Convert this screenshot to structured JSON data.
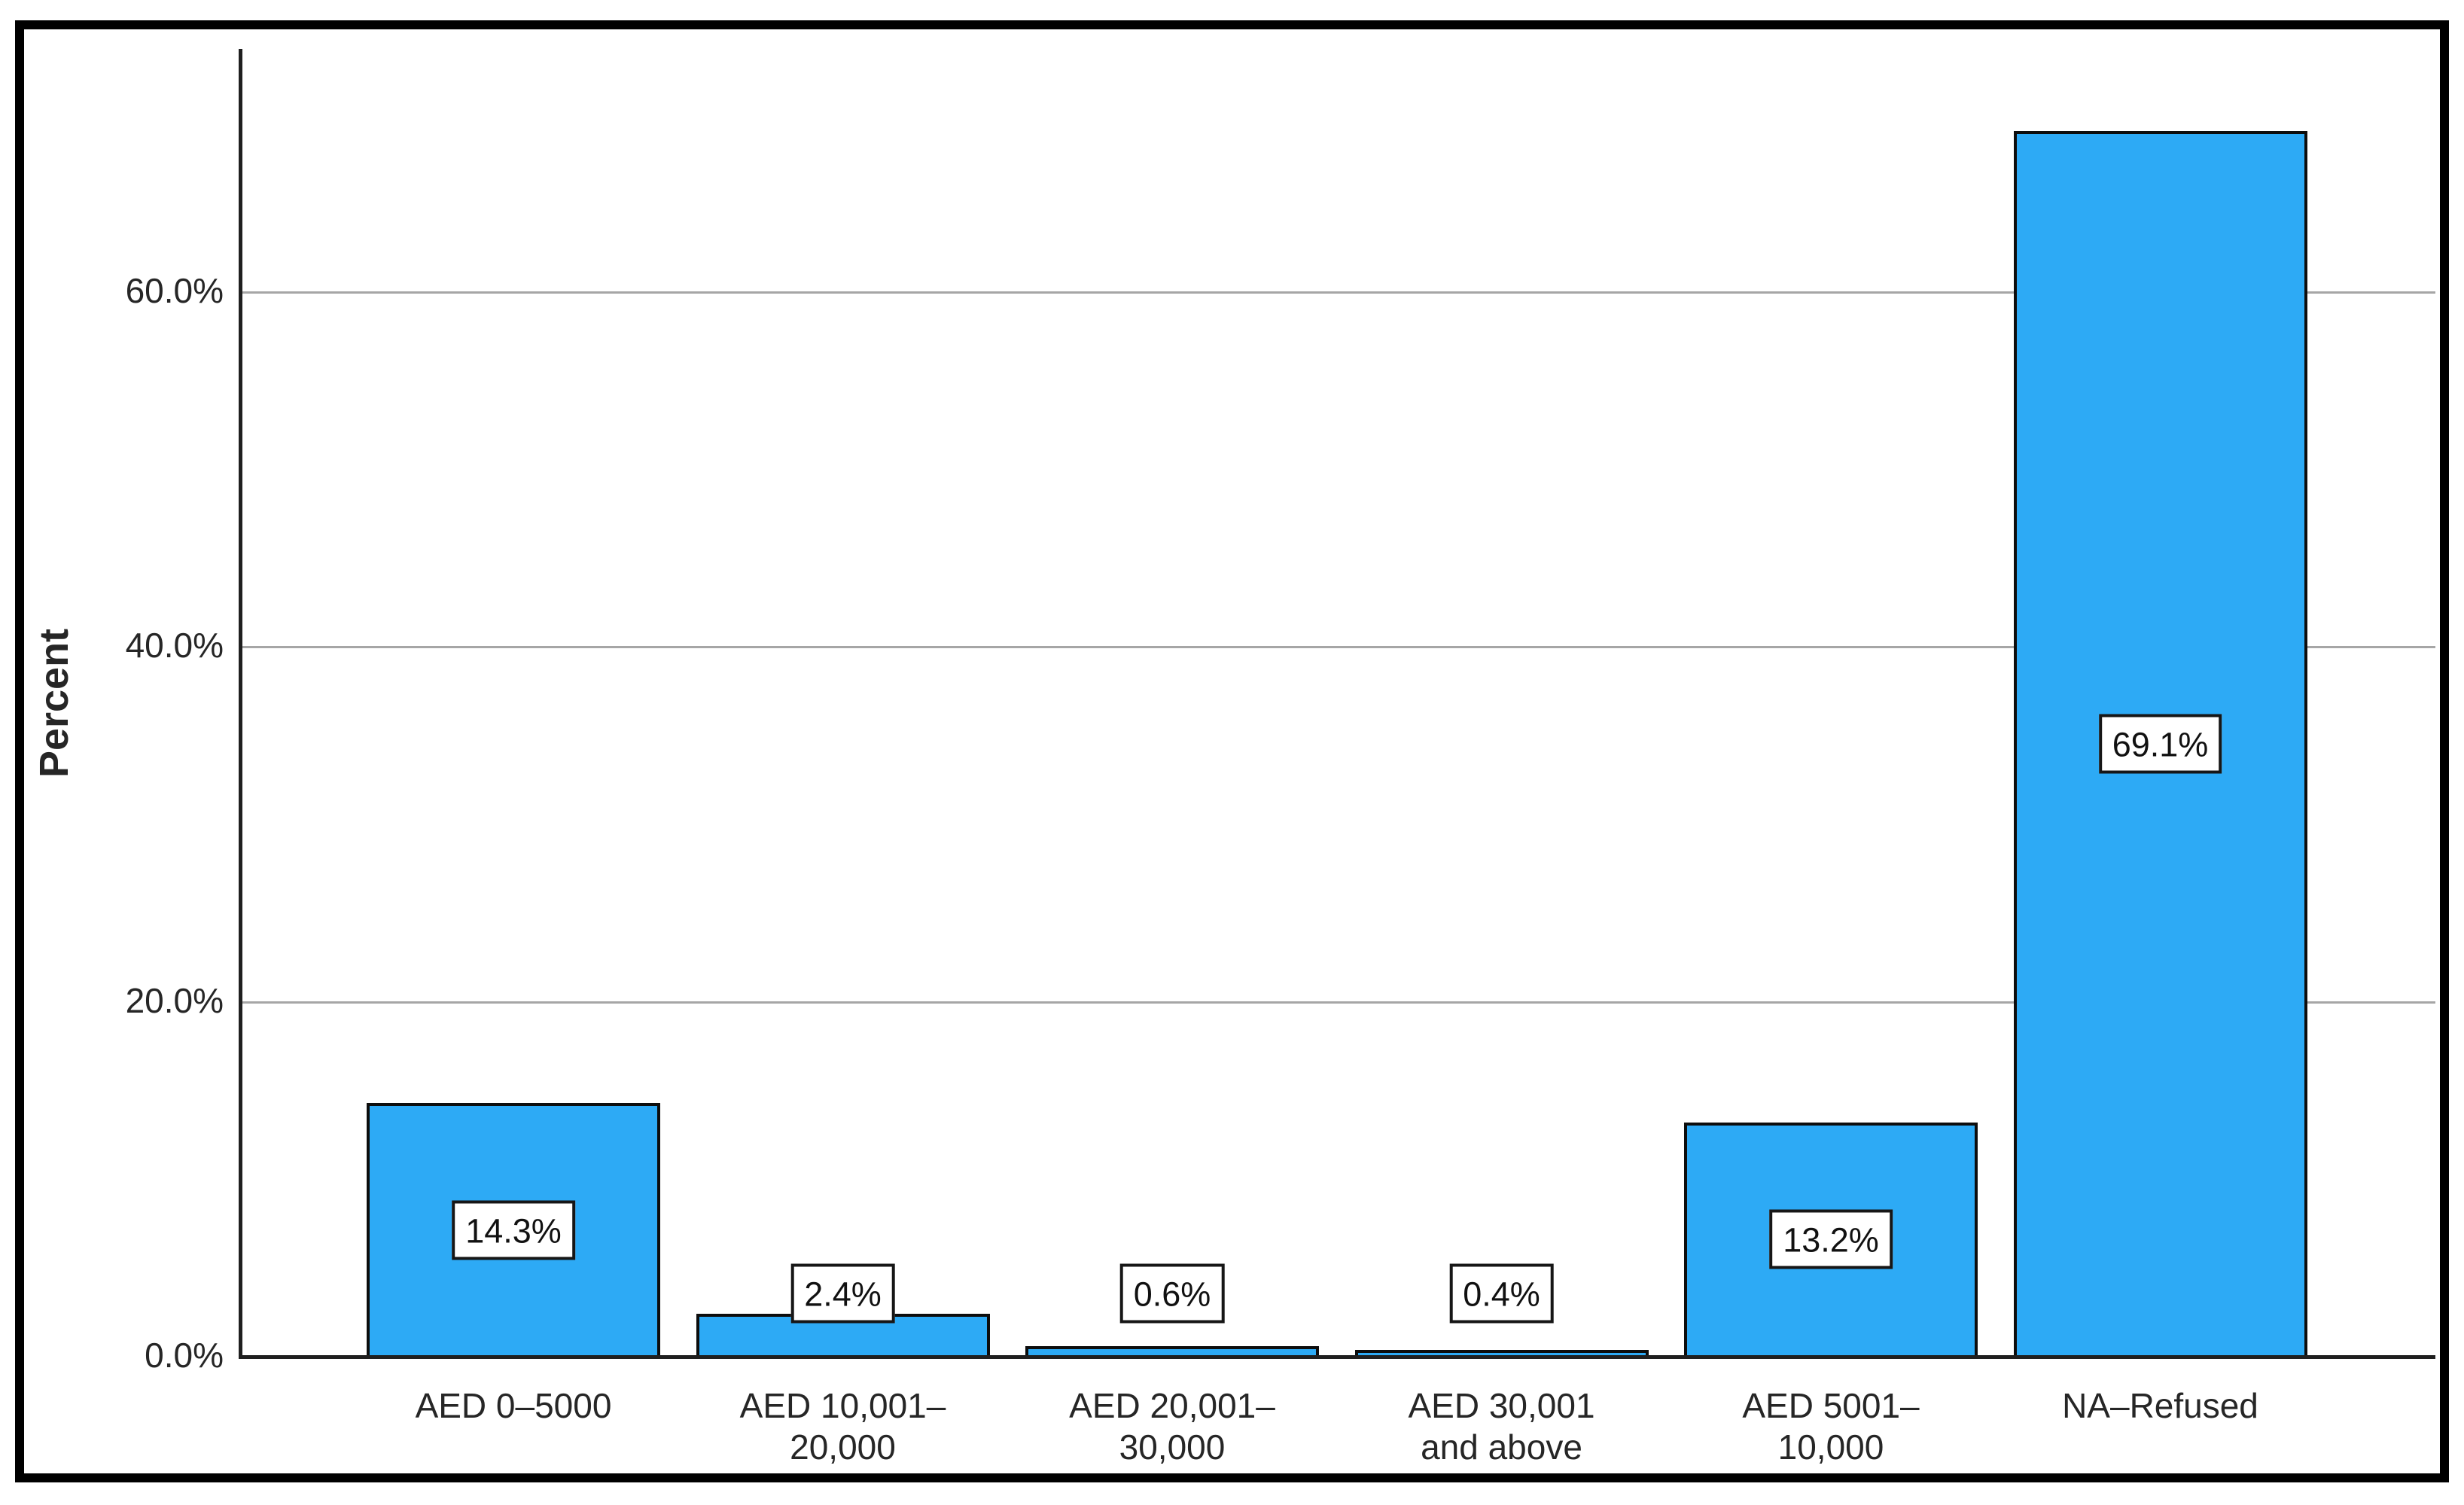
{
  "chart_data": {
    "type": "bar",
    "title": "",
    "xlabel": "",
    "ylabel": "Percent",
    "categories": [
      "AED 0–5000",
      "AED 10,001–\n20,000",
      "AED 20,001–\n30,000",
      "AED 30,001\nand above",
      "AED 5001–\n10,000",
      "NA–Refused"
    ],
    "values": [
      14.3,
      2.4,
      0.6,
      0.4,
      13.2,
      69.1
    ],
    "value_labels": [
      "14.3%",
      "2.4%",
      "0.6%",
      "0.4%",
      "13.2%",
      "69.1%"
    ],
    "y_ticks": [
      {
        "label": "0.0%",
        "value": 0
      },
      {
        "label": "20.0%",
        "value": 20
      },
      {
        "label": "40.0%",
        "value": 40
      },
      {
        "label": "60.0%",
        "value": 60
      }
    ],
    "ylim": [
      0,
      73.7
    ],
    "grid": "horizontal-only",
    "legend": "none",
    "colors": {
      "bar_fill": "#2DAAF5",
      "bar_border": "#0D0D0D",
      "gridline": "#A6A6A6",
      "axis": "#1F1F1F",
      "text": "#262626",
      "value_label_text": "#111111",
      "value_label_box_bg": "#FFFFFF",
      "value_label_box_border": "#161616",
      "frame": "#000000",
      "background": "#FFFFFF"
    }
  }
}
